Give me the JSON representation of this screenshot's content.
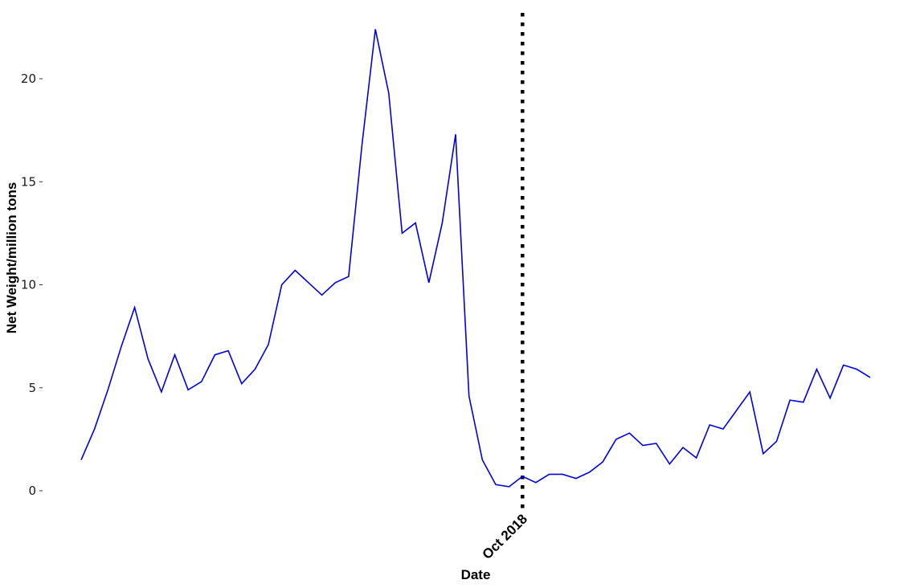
{
  "chart_data": {
    "type": "line",
    "xlabel": "Date",
    "ylabel": "Net Weight/million tons",
    "ylim": [
      -0.9,
      23.1
    ],
    "y_ticks": [
      0,
      5,
      10,
      15,
      20
    ],
    "grid": false,
    "legend": "none",
    "x_count": 60,
    "series": [
      {
        "color": "#0000e0",
        "values": [
          1.5,
          3.0,
          4.9,
          7.0,
          8.9,
          6.4,
          4.8,
          6.6,
          4.9,
          5.3,
          6.6,
          6.8,
          5.2,
          5.9,
          7.1,
          10.0,
          10.7,
          10.1,
          9.5,
          10.1,
          10.4,
          16.8,
          22.4,
          19.3,
          12.5,
          13.0,
          10.1,
          13.0,
          17.3,
          4.6,
          1.5,
          0.3,
          0.2,
          0.7,
          0.4,
          0.8,
          0.8,
          0.6,
          0.9,
          1.4,
          2.5,
          2.8,
          2.2,
          2.3,
          1.3,
          2.1,
          1.6,
          3.2,
          3.0,
          3.9,
          4.8,
          1.8,
          2.4,
          4.4,
          4.3,
          5.9,
          4.5,
          6.1,
          5.9,
          5.5
        ]
      }
    ],
    "vline": {
      "index": 33,
      "label": "Oct 2018",
      "color": "#000000",
      "style": "dotted"
    }
  }
}
